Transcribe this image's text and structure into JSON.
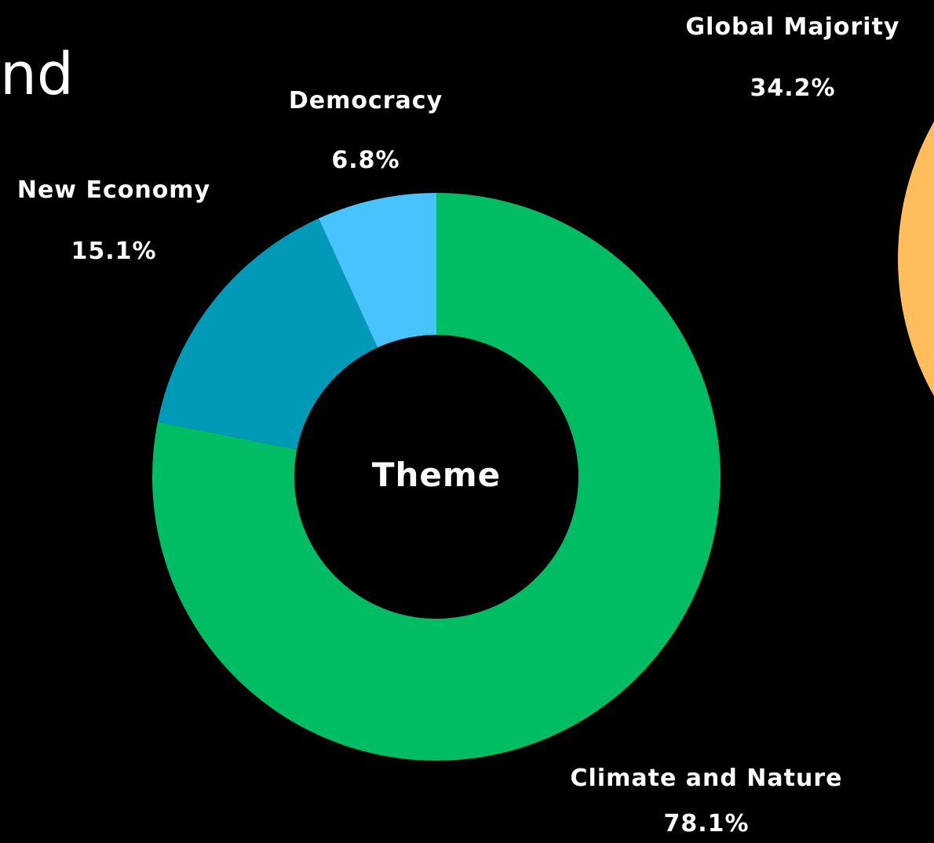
{
  "heading_fragment": "nd",
  "chart_data": [
    {
      "type": "pie",
      "center_label": "Theme",
      "slices": [
        {
          "label": "Climate and Nature",
          "value": 78.1,
          "value_label": "78.1%",
          "color": "#00bd64"
        },
        {
          "label": "New Economy",
          "value": 15.1,
          "value_label": "15.1%",
          "color": "#0099b7"
        },
        {
          "label": "Democracy",
          "value": 6.8,
          "value_label": "6.8%",
          "color": "#49c3fd"
        }
      ]
    },
    {
      "type": "pie",
      "slices": [
        {
          "label": "Global Majority",
          "value": 34.2,
          "value_label": "34.2%",
          "color": "#ffbd5c"
        }
      ]
    }
  ]
}
